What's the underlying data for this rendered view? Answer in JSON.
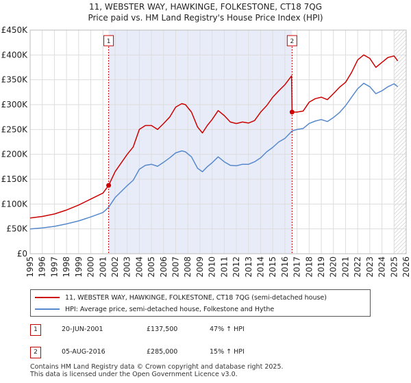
{
  "chart_data": {
    "type": "line",
    "title": "11, WEBSTER WAY, HAWKINGE, FOLKESTONE, CT18 7QG",
    "subtitle": "Price paid vs. HM Land Registry's House Price Index (HPI)",
    "xlim": [
      1995,
      2026
    ],
    "ylim": [
      0,
      450000
    ],
    "x_ticks": [
      1995,
      1996,
      1997,
      1998,
      1999,
      2000,
      2001,
      2002,
      2003,
      2004,
      2005,
      2006,
      2007,
      2008,
      2009,
      2010,
      2011,
      2012,
      2013,
      2014,
      2015,
      2016,
      2017,
      2018,
      2019,
      2020,
      2021,
      2022,
      2023,
      2024,
      2025,
      2026
    ],
    "y_ticks": [
      {
        "value": 0,
        "label": "£0"
      },
      {
        "value": 50000,
        "label": "£50K"
      },
      {
        "value": 100000,
        "label": "£100K"
      },
      {
        "value": 150000,
        "label": "£150K"
      },
      {
        "value": 200000,
        "label": "£200K"
      },
      {
        "value": 250000,
        "label": "£250K"
      },
      {
        "value": 300000,
        "label": "£300K"
      },
      {
        "value": 350000,
        "label": "£350K"
      },
      {
        "value": 400000,
        "label": "£400K"
      },
      {
        "value": 450000,
        "label": "£450K"
      }
    ],
    "shaded_range": [
      2001.47,
      2016.59
    ],
    "future_hatch_from": 2025.0,
    "markers": [
      {
        "label": "1",
        "x": 2001.47,
        "y": 137500
      },
      {
        "label": "2",
        "x": 2016.59,
        "y": 285000
      }
    ],
    "series": [
      {
        "name": "11, WEBSTER WAY, HAWKINGE, FOLKESTONE, CT18 7QG (semi-detached house)",
        "color": "#cc0000",
        "x": [
          1995.0,
          1996.0,
          1997.0,
          1998.0,
          1999.0,
          2000.0,
          2001.0,
          2001.47,
          2002.0,
          2003.0,
          2003.5,
          2004.0,
          2004.5,
          2005.0,
          2005.5,
          2006.0,
          2006.5,
          2007.0,
          2007.5,
          2007.8,
          2008.3,
          2008.8,
          2009.2,
          2009.6,
          2010.0,
          2010.5,
          2011.0,
          2011.5,
          2012.0,
          2012.5,
          2013.0,
          2013.5,
          2014.0,
          2014.5,
          2015.0,
          2015.5,
          2016.0,
          2016.55,
          2016.59,
          2017.0,
          2017.5,
          2018.0,
          2018.5,
          2019.0,
          2019.5,
          2020.0,
          2020.5,
          2021.0,
          2021.5,
          2022.0,
          2022.5,
          2023.0,
          2023.5,
          2024.0,
          2024.5,
          2025.0,
          2025.3
        ],
        "y": [
          72000,
          75000,
          80000,
          88000,
          98000,
          110000,
          122000,
          137500,
          165000,
          200000,
          215000,
          250000,
          258000,
          258000,
          250000,
          262000,
          275000,
          295000,
          302000,
          300000,
          285000,
          255000,
          243000,
          258000,
          270000,
          288000,
          278000,
          265000,
          262000,
          265000,
          263000,
          268000,
          285000,
          298000,
          315000,
          328000,
          340000,
          358000,
          285000,
          285000,
          287000,
          305000,
          312000,
          315000,
          310000,
          322000,
          335000,
          345000,
          365000,
          390000,
          400000,
          393000,
          375000,
          385000,
          395000,
          398000,
          388000
        ]
      },
      {
        "name": "HPI: Average price, semi-detached house, Folkestone and Hythe",
        "color": "#5588cc",
        "x": [
          1995.0,
          1996.0,
          1997.0,
          1998.0,
          1999.0,
          2000.0,
          2001.0,
          2001.47,
          2002.0,
          2003.0,
          2003.5,
          2004.0,
          2004.5,
          2005.0,
          2005.5,
          2006.0,
          2006.5,
          2007.0,
          2007.5,
          2007.8,
          2008.3,
          2008.8,
          2009.2,
          2009.6,
          2010.0,
          2010.5,
          2011.0,
          2011.5,
          2012.0,
          2012.5,
          2013.0,
          2013.5,
          2014.0,
          2014.5,
          2015.0,
          2015.5,
          2016.0,
          2016.59,
          2017.0,
          2017.5,
          2018.0,
          2018.5,
          2019.0,
          2019.5,
          2020.0,
          2020.5,
          2021.0,
          2021.5,
          2022.0,
          2022.5,
          2023.0,
          2023.5,
          2024.0,
          2024.5,
          2025.0,
          2025.3
        ],
        "y": [
          50000,
          52000,
          55000,
          60000,
          66000,
          74000,
          83000,
          93500,
          113000,
          137000,
          148000,
          170000,
          178000,
          180000,
          176000,
          184000,
          193000,
          203000,
          207000,
          205000,
          195000,
          172000,
          165000,
          175000,
          183000,
          195000,
          185000,
          178000,
          177000,
          180000,
          180000,
          185000,
          193000,
          205000,
          214000,
          225000,
          232000,
          247000,
          250000,
          252000,
          262000,
          267000,
          270000,
          266000,
          274000,
          284000,
          298000,
          315000,
          332000,
          343000,
          336000,
          322000,
          328000,
          336000,
          342000,
          336000
        ]
      }
    ]
  },
  "legend": {
    "item1": "11, WEBSTER WAY, HAWKINGE, FOLKESTONE, CT18 7QG (semi-detached house)",
    "item2": "HPI: Average price, semi-detached house, Folkestone and Hythe"
  },
  "sales": [
    {
      "num": "1",
      "date": "20-JUN-2001",
      "price": "£137,500",
      "hpi": "47% ↑ HPI"
    },
    {
      "num": "2",
      "date": "05-AUG-2016",
      "price": "£285,000",
      "hpi": "15% ↑ HPI"
    }
  ],
  "footer": {
    "line1": "Contains HM Land Registry data © Crown copyright and database right 2025.",
    "line2": "This data is licensed under the Open Government Licence v3.0."
  },
  "colors": {
    "price_line": "#cc0000",
    "hpi_line": "#5588cc",
    "shade": "#e8ecf8",
    "grid": "#dddddd"
  }
}
